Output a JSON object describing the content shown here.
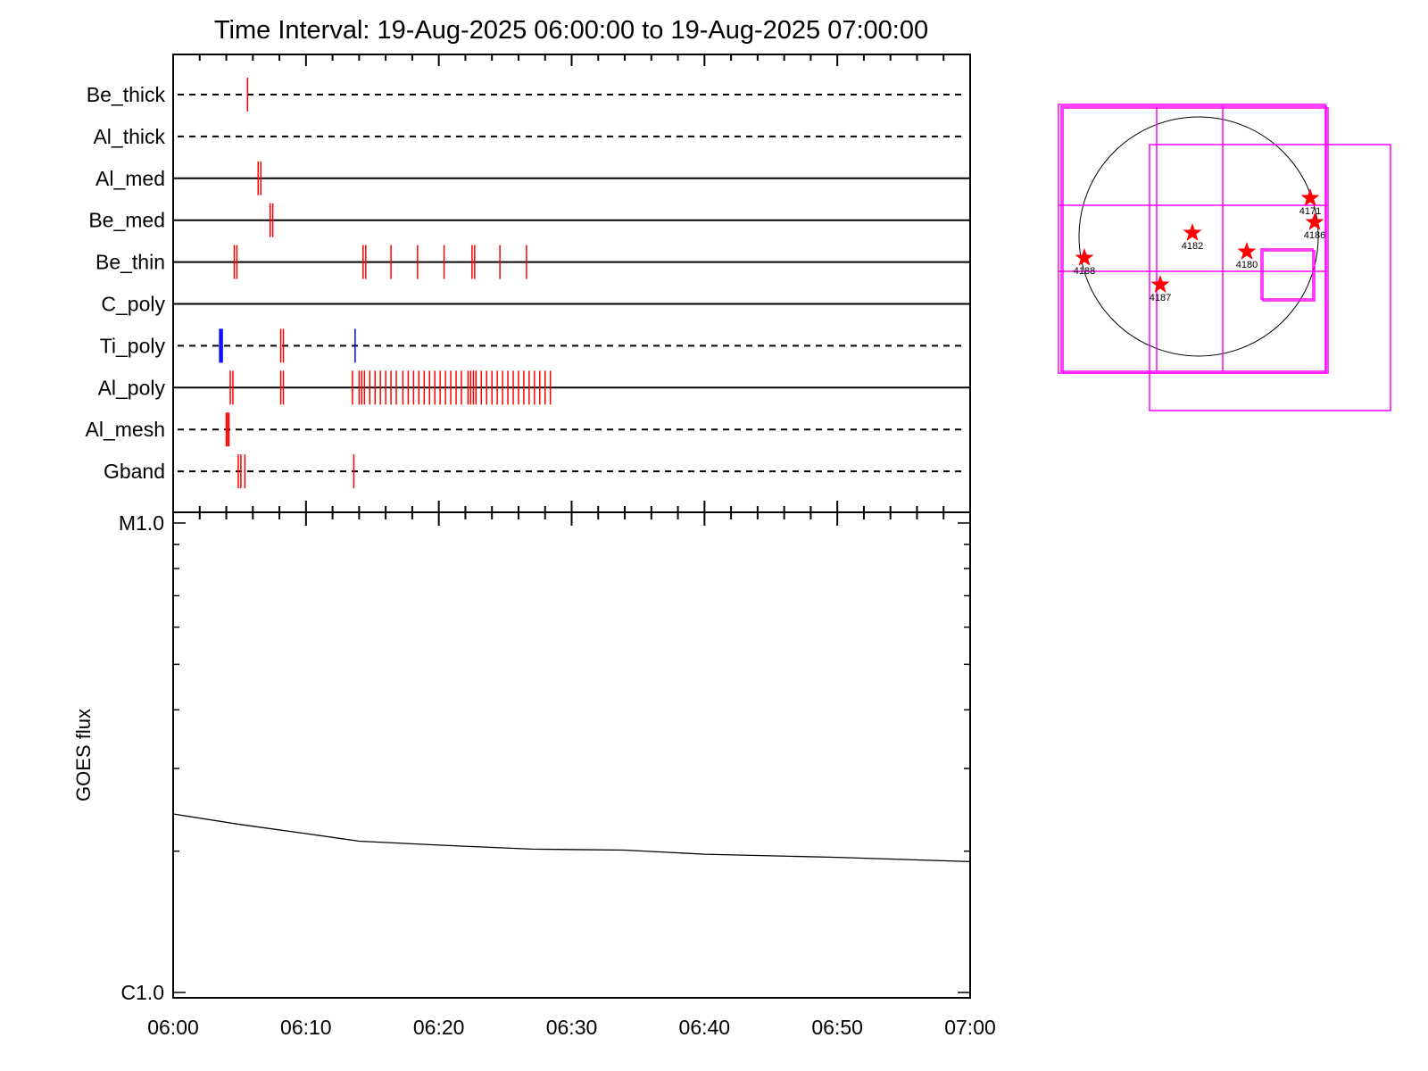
{
  "colors": {
    "event_red": "#ff0000",
    "event_blue": "#0000ff",
    "fov_magenta": "#ff00ff",
    "axis": "#000000"
  },
  "chart_data": [
    {
      "type": "timeline",
      "title": "Time Interval: 19-Aug-2025 06:00:00 to 19-Aug-2025 07:00:00",
      "x_range_minutes": [
        0,
        60
      ],
      "tracks": [
        {
          "name": "Be_thick",
          "line": "dashed",
          "events": [
            {
              "t": 5.6,
              "color": "red"
            }
          ]
        },
        {
          "name": "Al_thick",
          "line": "dashed",
          "events": []
        },
        {
          "name": "Al_med",
          "line": "solid",
          "events": [
            {
              "t": 6.4,
              "color": "red"
            },
            {
              "t": 6.6,
              "color": "red"
            }
          ]
        },
        {
          "name": "Be_med",
          "line": "solid",
          "events": [
            {
              "t": 7.3,
              "color": "red"
            },
            {
              "t": 7.5,
              "color": "red"
            }
          ]
        },
        {
          "name": "Be_thin",
          "line": "solid",
          "events": [
            {
              "t": 4.6,
              "color": "red"
            },
            {
              "t": 4.8,
              "color": "red"
            },
            {
              "t": 14.3,
              "color": "red"
            },
            {
              "t": 14.5,
              "color": "red"
            },
            {
              "t": 16.4,
              "color": "red"
            },
            {
              "t": 18.4,
              "color": "red"
            },
            {
              "t": 20.4,
              "color": "red"
            },
            {
              "t": 22.5,
              "color": "red"
            },
            {
              "t": 22.7,
              "color": "red"
            },
            {
              "t": 24.6,
              "color": "red"
            },
            {
              "t": 26.6,
              "color": "red"
            }
          ]
        },
        {
          "name": "C_poly",
          "line": "solid",
          "events": []
        },
        {
          "name": "Ti_poly",
          "line": "dashed",
          "events": [
            {
              "t": 3.5,
              "color": "blue"
            },
            {
              "t": 3.6,
              "color": "blue"
            },
            {
              "t": 3.7,
              "color": "blue"
            },
            {
              "t": 8.1,
              "color": "red"
            },
            {
              "t": 8.3,
              "color": "red"
            },
            {
              "t": 13.7,
              "color": "blue"
            }
          ]
        },
        {
          "name": "Al_poly",
          "line": "solid",
          "events": [
            {
              "t": 4.3,
              "color": "red"
            },
            {
              "t": 4.5,
              "color": "red"
            },
            {
              "t": 8.1,
              "color": "red"
            },
            {
              "t": 8.3,
              "color": "red"
            },
            {
              "t": 13.5,
              "color": "red"
            },
            {
              "t": 14.0,
              "color": "red"
            },
            {
              "t": 14.2,
              "color": "red"
            },
            {
              "t": 14.4,
              "color": "red"
            },
            {
              "t": 14.8,
              "color": "red"
            },
            {
              "t": 15.2,
              "color": "red"
            },
            {
              "t": 15.6,
              "color": "red"
            },
            {
              "t": 16.0,
              "color": "red"
            },
            {
              "t": 16.4,
              "color": "red"
            },
            {
              "t": 16.8,
              "color": "red"
            },
            {
              "t": 17.3,
              "color": "red"
            },
            {
              "t": 17.7,
              "color": "red"
            },
            {
              "t": 18.1,
              "color": "red"
            },
            {
              "t": 18.5,
              "color": "red"
            },
            {
              "t": 18.9,
              "color": "red"
            },
            {
              "t": 19.3,
              "color": "red"
            },
            {
              "t": 19.7,
              "color": "red"
            },
            {
              "t": 20.1,
              "color": "red"
            },
            {
              "t": 20.5,
              "color": "red"
            },
            {
              "t": 20.9,
              "color": "red"
            },
            {
              "t": 21.3,
              "color": "red"
            },
            {
              "t": 21.7,
              "color": "red"
            },
            {
              "t": 22.2,
              "color": "red"
            },
            {
              "t": 22.4,
              "color": "red"
            },
            {
              "t": 22.6,
              "color": "red"
            },
            {
              "t": 22.8,
              "color": "red"
            },
            {
              "t": 23.2,
              "color": "red"
            },
            {
              "t": 23.6,
              "color": "red"
            },
            {
              "t": 24.0,
              "color": "red"
            },
            {
              "t": 24.4,
              "color": "red"
            },
            {
              "t": 24.8,
              "color": "red"
            },
            {
              "t": 25.2,
              "color": "red"
            },
            {
              "t": 25.6,
              "color": "red"
            },
            {
              "t": 26.0,
              "color": "red"
            },
            {
              "t": 26.4,
              "color": "red"
            },
            {
              "t": 26.8,
              "color": "red"
            },
            {
              "t": 27.2,
              "color": "red"
            },
            {
              "t": 27.6,
              "color": "red"
            },
            {
              "t": 28.0,
              "color": "red"
            },
            {
              "t": 28.4,
              "color": "red"
            }
          ]
        },
        {
          "name": "Al_mesh",
          "line": "dashed",
          "events": [
            {
              "t": 4.0,
              "color": "red"
            },
            {
              "t": 4.1,
              "color": "red"
            },
            {
              "t": 4.2,
              "color": "red"
            }
          ]
        },
        {
          "name": "Gband",
          "line": "dashed",
          "events": [
            {
              "t": 4.9,
              "color": "red"
            },
            {
              "t": 5.1,
              "color": "red"
            },
            {
              "t": 5.4,
              "color": "red"
            },
            {
              "t": 13.6,
              "color": "red"
            }
          ]
        }
      ]
    },
    {
      "type": "line",
      "ylabel": "GOES flux",
      "y_scale": "log",
      "y_tick_labels": [
        "M1.0",
        "C1.0"
      ],
      "ylim": [
        1e-06,
        1e-05
      ],
      "x_tick_labels": [
        "06:00",
        "06:10",
        "06:20",
        "06:30",
        "06:40",
        "06:50",
        "07:00"
      ],
      "x_range_minutes": [
        0,
        60
      ],
      "series": [
        {
          "x": [
            0,
            5,
            10,
            14,
            20,
            27,
            34,
            40,
            50,
            60
          ],
          "y": [
            2.4e-06,
            2.28e-06,
            2.18e-06,
            2.1e-06,
            2.06e-06,
            2.02e-06,
            2.01e-06,
            1.97e-06,
            1.94e-06,
            1.9e-06
          ]
        }
      ]
    },
    {
      "type": "scatter",
      "subtype": "solar-disk-map",
      "regions": [
        {
          "label": "4171"
        },
        {
          "label": "4186"
        },
        {
          "label": "4182"
        },
        {
          "label": "4180"
        },
        {
          "label": "4188"
        },
        {
          "label": "4187"
        }
      ]
    }
  ]
}
